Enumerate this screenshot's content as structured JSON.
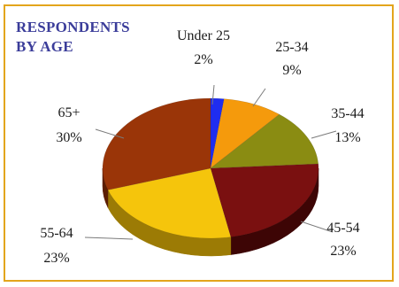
{
  "chart_data": {
    "type": "pie",
    "title": [
      "RESPONDENTS",
      "BY AGE"
    ],
    "title_color": "#3b3d9a",
    "border_color": "#e3a51c",
    "slices": [
      {
        "label": "Under 25",
        "percent_text": "2%",
        "value": 2,
        "color": "#1f2df0",
        "side": "#0c1590"
      },
      {
        "label": "25-34",
        "percent_text": "9%",
        "value": 9,
        "color": "#f59a0c",
        "side": "#a8650a"
      },
      {
        "label": "35-44",
        "percent_text": "13%",
        "value": 13,
        "color": "#8a8c12",
        "side": "#555708"
      },
      {
        "label": "45-54",
        "percent_text": "23%",
        "value": 23,
        "color": "#7a1010",
        "side": "#3d0505"
      },
      {
        "label": "55-64",
        "percent_text": "23%",
        "value": 23,
        "color": "#f5c50c",
        "side": "#9c7b05"
      },
      {
        "label": "65+",
        "percent_text": "30%",
        "value": 30,
        "color": "#9a3508",
        "side": "#5c1e03"
      }
    ]
  }
}
